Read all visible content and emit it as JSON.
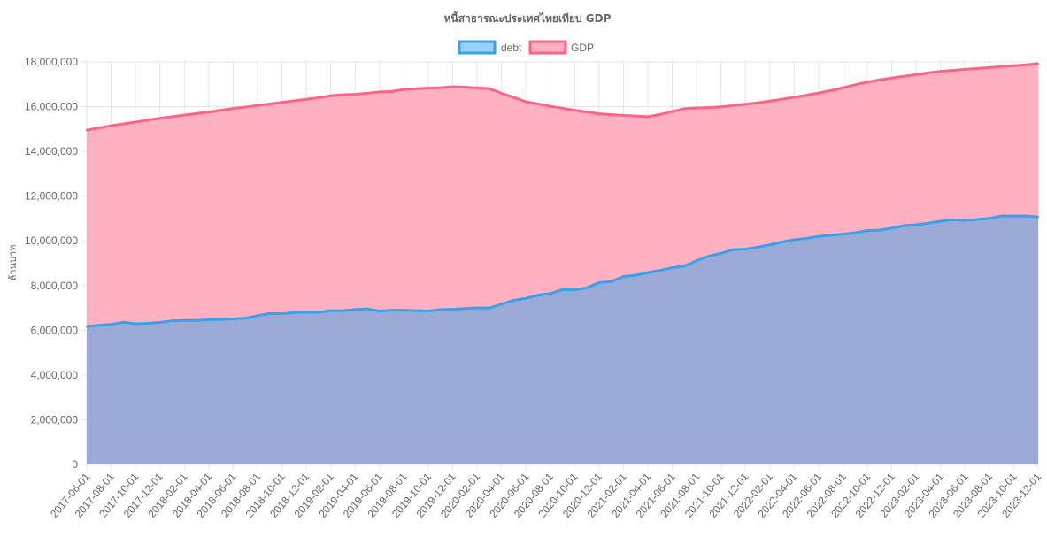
{
  "chart_data": {
    "type": "area",
    "title": "หนี้สาธารณะประเทศไทยเทียบ GDP",
    "ylabel": "ล้านบาท",
    "xlabel": "",
    "ylim": [
      0,
      18000000
    ],
    "yticks": [
      0,
      2000000,
      4000000,
      6000000,
      8000000,
      10000000,
      12000000,
      14000000,
      16000000,
      18000000
    ],
    "stacked": false,
    "grid": true,
    "legend_position": "top-center",
    "x": [
      "2017-06-01",
      "2017-07-01",
      "2017-08-01",
      "2017-09-01",
      "2017-10-01",
      "2017-11-01",
      "2017-12-01",
      "2018-01-01",
      "2018-02-01",
      "2018-03-01",
      "2018-04-01",
      "2018-05-01",
      "2018-06-01",
      "2018-07-01",
      "2018-08-01",
      "2018-09-01",
      "2018-10-01",
      "2018-11-01",
      "2018-12-01",
      "2019-01-01",
      "2019-02-01",
      "2019-03-01",
      "2019-04-01",
      "2019-05-01",
      "2019-06-01",
      "2019-07-01",
      "2019-08-01",
      "2019-09-01",
      "2019-10-01",
      "2019-11-01",
      "2019-12-01",
      "2020-01-01",
      "2020-02-01",
      "2020-03-01",
      "2020-04-01",
      "2020-05-01",
      "2020-06-01",
      "2020-07-01",
      "2020-08-01",
      "2020-09-01",
      "2020-10-01",
      "2020-11-01",
      "2020-12-01",
      "2021-01-01",
      "2021-02-01",
      "2021-03-01",
      "2021-04-01",
      "2021-05-01",
      "2021-06-01",
      "2021-07-01",
      "2021-08-01",
      "2021-09-01",
      "2021-10-01",
      "2021-11-01",
      "2021-12-01",
      "2022-01-01",
      "2022-02-01",
      "2022-03-01",
      "2022-04-01",
      "2022-05-01",
      "2022-06-01",
      "2022-07-01",
      "2022-08-01",
      "2022-09-01",
      "2022-10-01",
      "2022-11-01",
      "2022-12-01",
      "2023-01-01",
      "2023-02-01",
      "2023-03-01",
      "2023-04-01",
      "2023-05-01",
      "2023-06-01",
      "2023-07-01",
      "2023-08-01",
      "2023-09-01",
      "2023-10-01",
      "2023-11-01",
      "2023-12-01"
    ],
    "xticks": [
      "2017-06-01",
      "2017-08-01",
      "2017-10-01",
      "2017-12-01",
      "2018-02-01",
      "2018-04-01",
      "2018-06-01",
      "2018-08-01",
      "2018-10-01",
      "2018-12-01",
      "2019-02-01",
      "2019-04-01",
      "2019-06-01",
      "2019-08-01",
      "2019-10-01",
      "2019-12-01",
      "2020-02-01",
      "2020-04-01",
      "2020-06-01",
      "2020-08-01",
      "2020-10-01",
      "2020-12-01",
      "2021-02-01",
      "2021-04-01",
      "2021-06-01",
      "2021-08-01",
      "2021-10-01",
      "2021-12-01",
      "2022-02-01",
      "2022-04-01",
      "2022-06-01",
      "2022-08-01",
      "2022-10-01",
      "2022-12-01",
      "2023-02-01",
      "2023-04-01",
      "2023-06-01",
      "2023-08-01",
      "2023-10-01",
      "2023-12-01"
    ],
    "series": [
      {
        "name": "debt",
        "line_color": "#36a2eb",
        "fill_color": "#9aa9d6",
        "legend_fill": "#9ad0f5",
        "values": [
          6170000,
          6220000,
          6260000,
          6360000,
          6290000,
          6310000,
          6350000,
          6420000,
          6440000,
          6440000,
          6470000,
          6480000,
          6510000,
          6540000,
          6650000,
          6750000,
          6740000,
          6790000,
          6810000,
          6800000,
          6880000,
          6880000,
          6930000,
          6960000,
          6860000,
          6900000,
          6900000,
          6880000,
          6860000,
          6930000,
          6940000,
          6970000,
          7000000,
          6990000,
          7170000,
          7340000,
          7430000,
          7570000,
          7640000,
          7820000,
          7810000,
          7900000,
          8130000,
          8180000,
          8400000,
          8460000,
          8580000,
          8680000,
          8800000,
          8870000,
          9110000,
          9320000,
          9440000,
          9610000,
          9630000,
          9720000,
          9820000,
          9950000,
          10050000,
          10110000,
          10200000,
          10250000,
          10300000,
          10360000,
          10460000,
          10480000,
          10570000,
          10680000,
          10720000,
          10790000,
          10880000,
          10950000,
          10920000,
          10960000,
          11010000,
          11110000,
          11110000,
          11110000,
          11070000
        ]
      },
      {
        "name": "GDP",
        "line_color": "#ff6384",
        "fill_color": "#ffb1c1",
        "legend_fill": "#ffb1c1",
        "values": [
          14950000,
          15050000,
          15150000,
          15230000,
          15310000,
          15400000,
          15480000,
          15550000,
          15620000,
          15690000,
          15760000,
          15840000,
          15920000,
          15980000,
          16050000,
          16120000,
          16190000,
          16260000,
          16330000,
          16400000,
          16490000,
          16530000,
          16550000,
          16600000,
          16660000,
          16680000,
          16770000,
          16800000,
          16830000,
          16850000,
          16890000,
          16870000,
          16840000,
          16810000,
          16600000,
          16420000,
          16220000,
          16120000,
          16020000,
          15930000,
          15840000,
          15760000,
          15680000,
          15640000,
          15610000,
          15580000,
          15550000,
          15650000,
          15780000,
          15910000,
          15940000,
          15960000,
          15990000,
          16050000,
          16110000,
          16170000,
          16250000,
          16330000,
          16420000,
          16510000,
          16610000,
          16720000,
          16850000,
          16980000,
          17100000,
          17200000,
          17280000,
          17360000,
          17430000,
          17510000,
          17580000,
          17620000,
          17670000,
          17710000,
          17750000,
          17790000,
          17830000,
          17870000,
          17920000
        ]
      }
    ]
  }
}
